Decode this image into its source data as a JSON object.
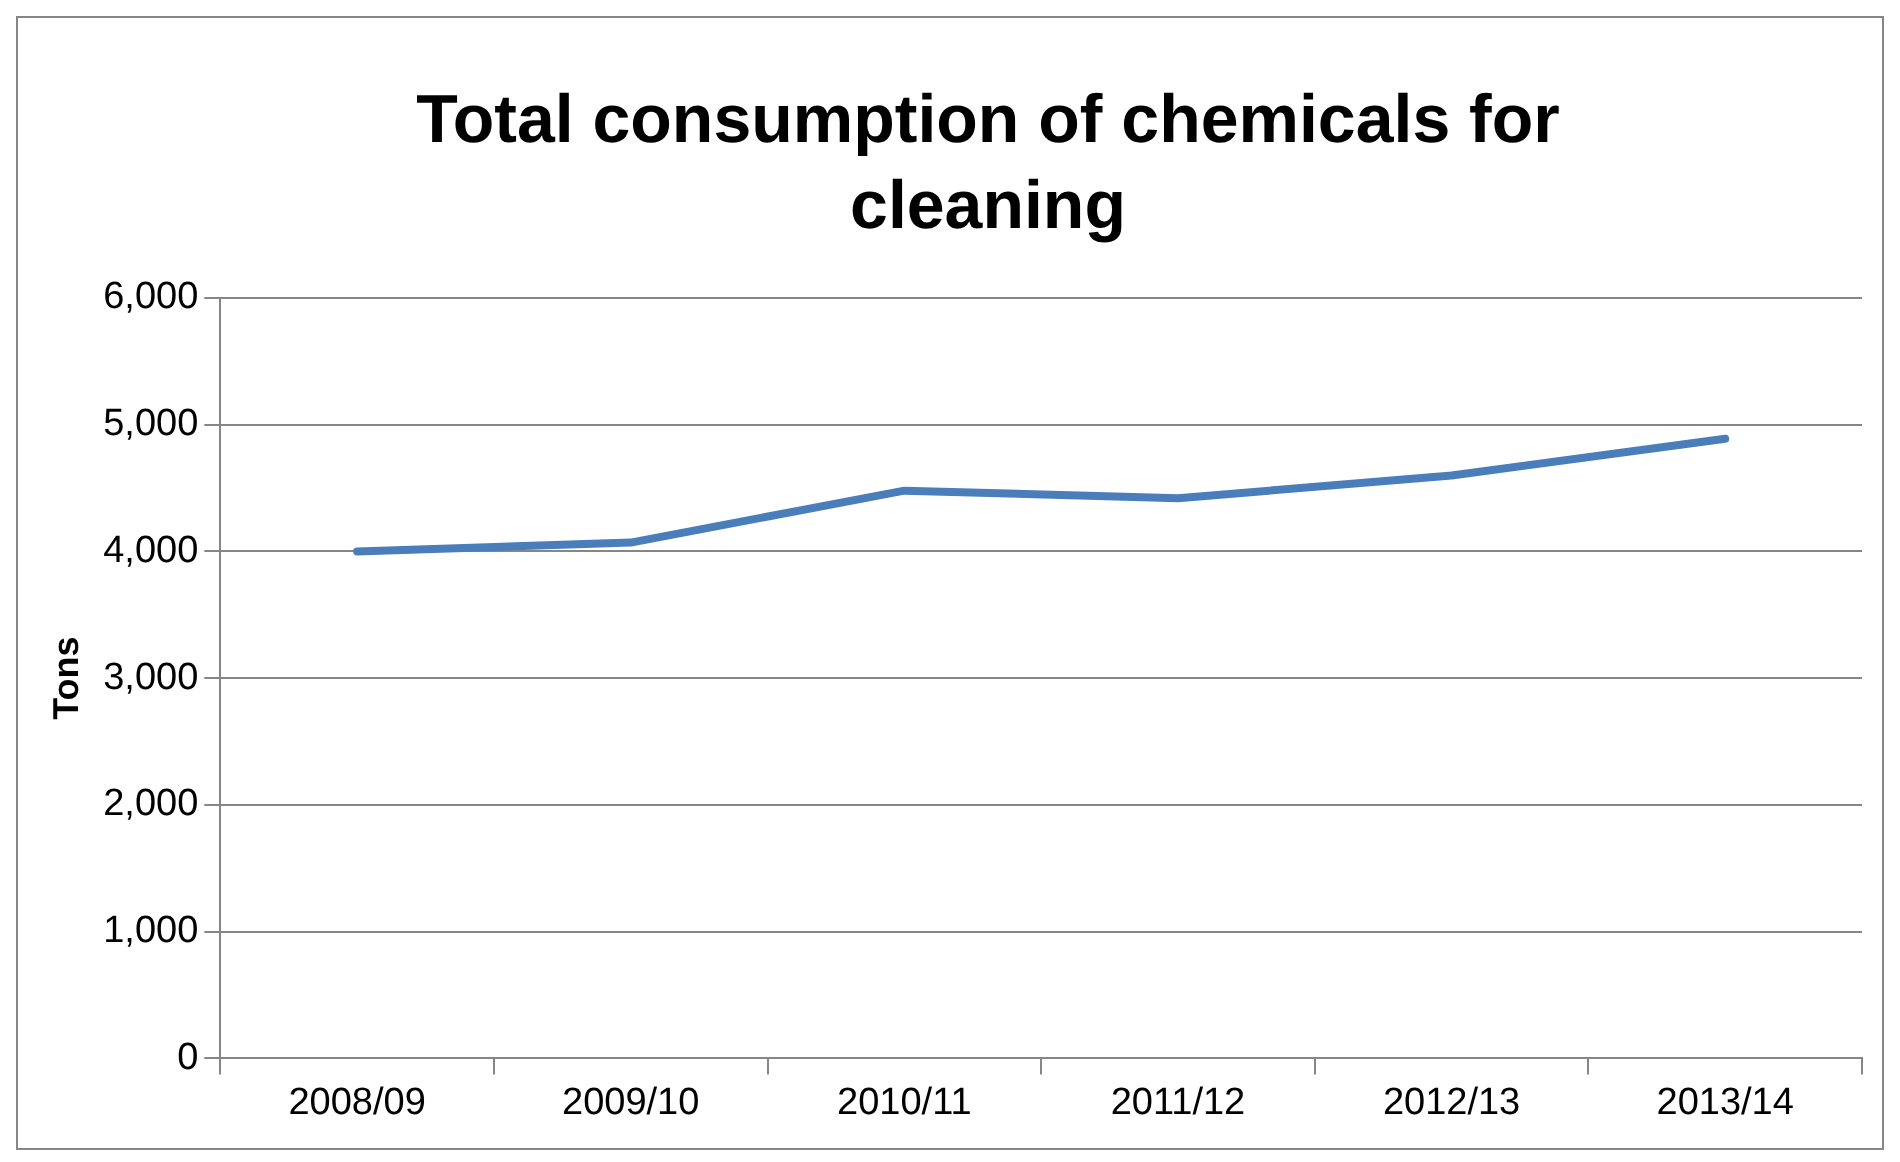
{
  "chart_data": {
    "type": "line",
    "title": "Total consumption of chemicals for cleaning",
    "ylabel": "Tons",
    "categories": [
      "2008/09",
      "2009/10",
      "2010/11",
      "2011/12",
      "2012/13",
      "2013/14"
    ],
    "series": [
      {
        "color": "#4a7ebb",
        "values": [
          4000,
          4070,
          4480,
          4420,
          4600,
          4890
        ]
      }
    ],
    "ylim": [
      0,
      6000
    ],
    "yticks": [
      {
        "value": 0,
        "label": "0"
      },
      {
        "value": 1000,
        "label": "1,000"
      },
      {
        "value": 2000,
        "label": "2,000"
      },
      {
        "value": 3000,
        "label": "3,000"
      },
      {
        "value": 4000,
        "label": "4,000"
      },
      {
        "value": 5000,
        "label": "5,000"
      },
      {
        "value": 6000,
        "label": "6,000"
      }
    ],
    "grid": "y",
    "legend": false,
    "marker": "none",
    "line_style": "solid"
  }
}
